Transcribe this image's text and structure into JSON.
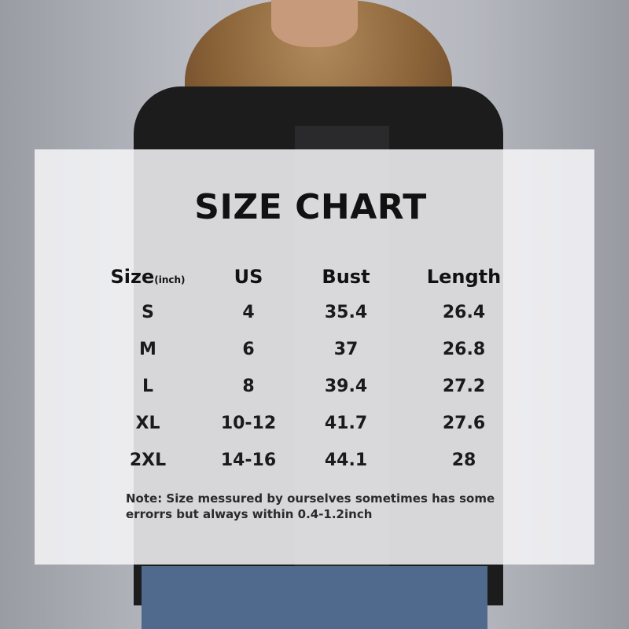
{
  "title": "SIZE CHART",
  "table": {
    "headers": [
      "Size",
      "US",
      "Bust",
      "Length"
    ],
    "size_unit": "(inch)",
    "rows": [
      [
        "S",
        "4",
        "35.4",
        "26.4"
      ],
      [
        "M",
        "6",
        "37",
        "26.8"
      ],
      [
        "L",
        "8",
        "39.4",
        "27.2"
      ],
      [
        "XL",
        "10-12",
        "41.7",
        "27.6"
      ],
      [
        "2XL",
        "14-16",
        "44.1",
        "28"
      ]
    ]
  },
  "note": {
    "line1": "Note:  Size messured by ourselves sometimes has some",
    "line2": "errorrs but always within 0.4-1.2inch"
  }
}
